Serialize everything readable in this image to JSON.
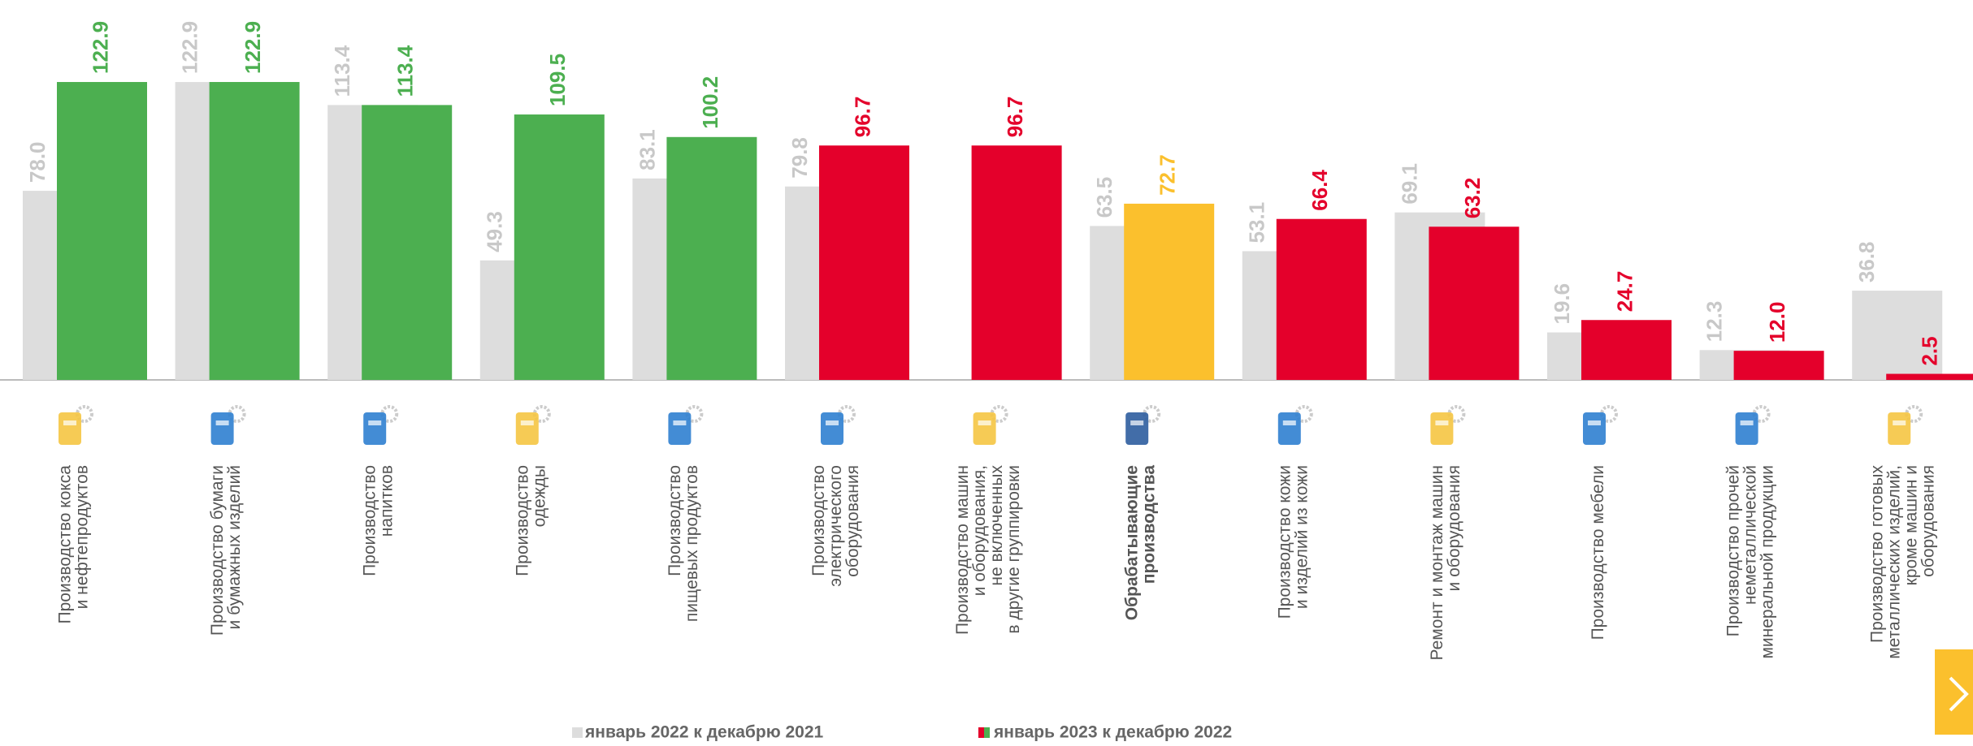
{
  "chart_data": {
    "type": "bar",
    "categories": [
      "Производство кокса\nи нефтепродуктов",
      "Производство бумаги\nи бумажных изделий",
      "Производство\nнапитков",
      "Производство\nодежды",
      "Производство\nпищевых продуктов",
      "Производство\nэлектрического\nоборудования",
      "Производство машин\nи оборудования,\nне включенных\nв другие группировки",
      "Обрабатывающие\nпроизводства",
      "Производство кожи\nи изделий из кожи",
      "Ремонт и монтаж машин\nи оборудования",
      "Производство мебели",
      "Производство прочей\nнеметаллической\nминеральной продукции",
      "Производство готовых\nметаллических изделий,\nкроме машин и\nоборудования"
    ],
    "series": [
      {
        "name": "январь 2022 к декабрю 2021",
        "color": "#dddddd",
        "label_color": "#c8c8c8",
        "values": [
          78.0,
          122.9,
          113.4,
          49.3,
          83.1,
          79.8,
          null,
          63.5,
          53.1,
          69.1,
          19.6,
          12.3,
          36.8
        ],
        "value_labels": [
          "78.0",
          "122.9",
          "113.4",
          "49.3",
          "83.1",
          "79.8",
          null,
          "63.5",
          "53.1",
          "69.1",
          "19.6",
          "12.3",
          "36.8"
        ]
      },
      {
        "name": "январь 2023 к декабрю 2022",
        "colors": [
          "#4caf50",
          "#4caf50",
          "#4caf50",
          "#4caf50",
          "#4caf50",
          "#e4002b",
          "#e4002b",
          "#fbc02d",
          "#e4002b",
          "#e4002b",
          "#e4002b",
          "#e4002b",
          "#e4002b"
        ],
        "values": [
          122.9,
          122.9,
          113.4,
          109.5,
          100.2,
          96.7,
          96.7,
          72.7,
          66.4,
          63.2,
          24.7,
          12.0,
          2.5
        ],
        "value_labels": [
          "122.9",
          "122.9",
          "113.4",
          "109.5",
          "100.2",
          "96.7",
          "96.7",
          "72.7",
          "66.4",
          "63.2",
          "24.7",
          "12.0",
          "2.5"
        ]
      }
    ],
    "ylim": [
      0,
      140
    ]
  }
}
